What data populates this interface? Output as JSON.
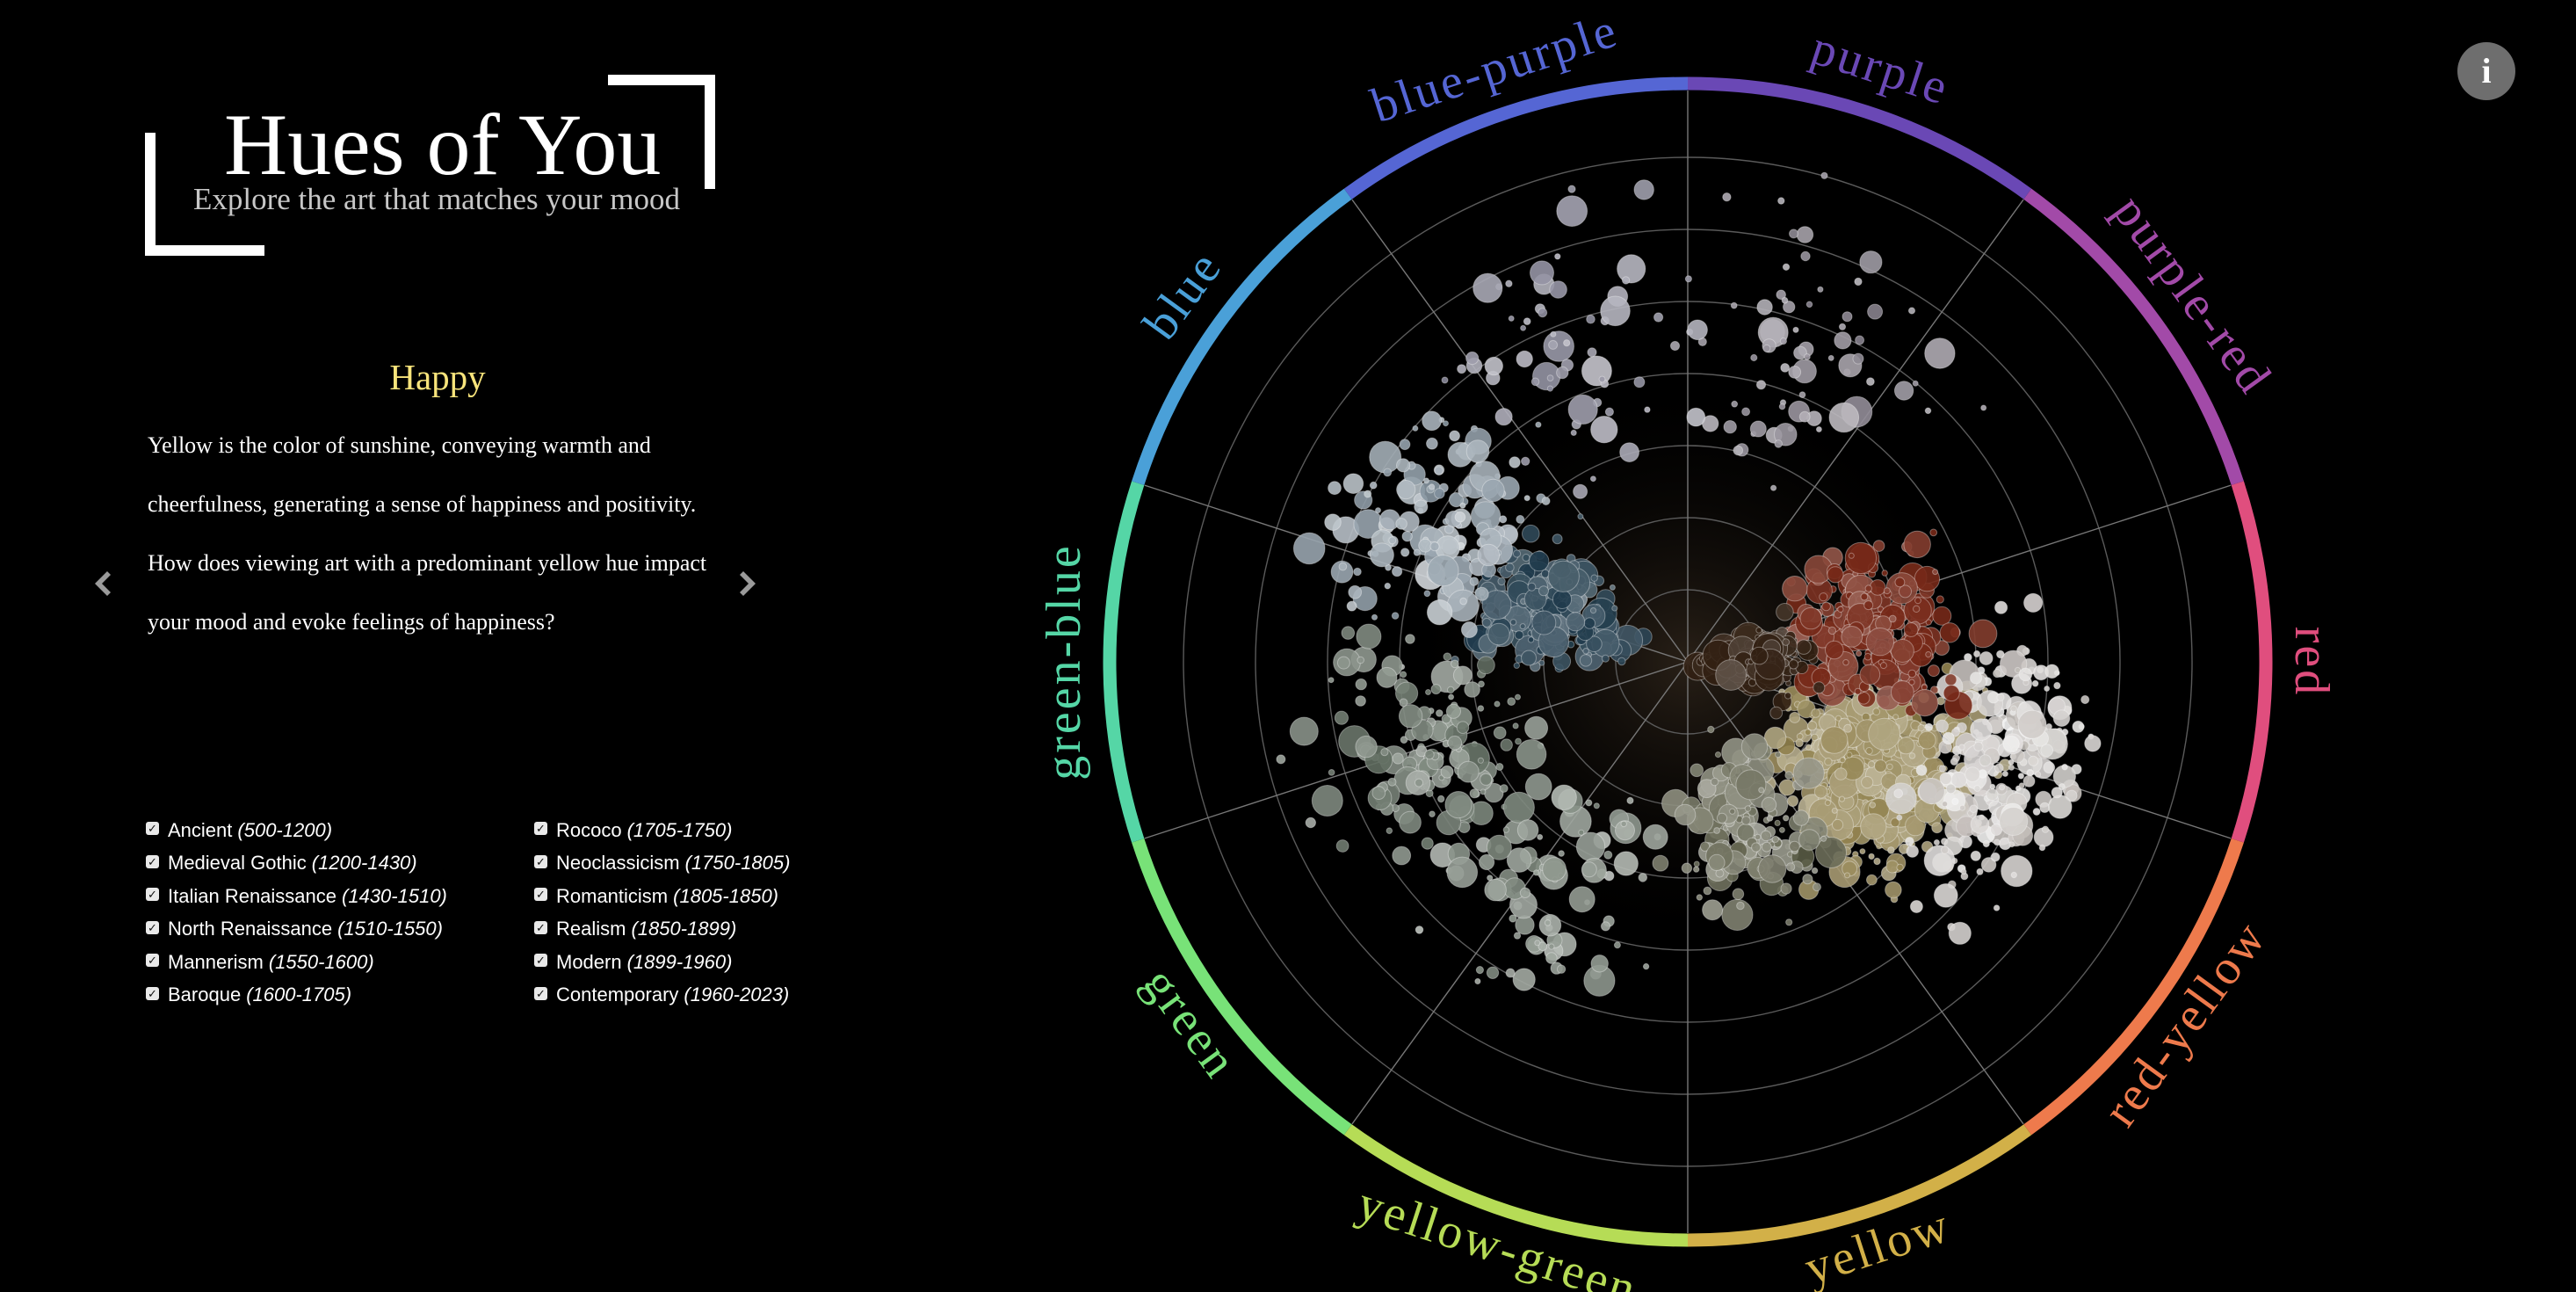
{
  "header": {
    "title": "Hues of You",
    "subtitle": "Explore the art that matches your mood"
  },
  "mood": {
    "title": "Happy",
    "lines": [
      "Yellow is the color of sunshine, conveying warmth and",
      "cheerfulness, generating a sense of happiness and positivity.",
      "How does viewing art with a predominant yellow hue impact",
      "your mood and evoke feelings of happiness?"
    ],
    "title_color": "#f8e47b"
  },
  "nav": {
    "prev_icon": "chevron-left-icon",
    "next_icon": "chevron-right-icon"
  },
  "info_button": {
    "label": "i",
    "icon": "info-icon"
  },
  "eras": [
    {
      "name": "Ancient",
      "years": "(500-1200)",
      "checked": true
    },
    {
      "name": "Medieval Gothic",
      "years": "(1200-1430)",
      "checked": true
    },
    {
      "name": "Italian Renaissance",
      "years": "(1430-1510)",
      "checked": true
    },
    {
      "name": "North Renaissance",
      "years": "(1510-1550)",
      "checked": true
    },
    {
      "name": "Mannerism",
      "years": "(1550-1600)",
      "checked": true
    },
    {
      "name": "Baroque",
      "years": "(1600-1705)",
      "checked": true
    },
    {
      "name": "Rococo",
      "years": "(1705-1750)",
      "checked": true
    },
    {
      "name": "Neoclassicism",
      "years": "(1750-1805)",
      "checked": true
    },
    {
      "name": "Romanticism",
      "years": "(1805-1850)",
      "checked": true
    },
    {
      "name": "Realism",
      "years": "(1850-1899)",
      "checked": true
    },
    {
      "name": "Modern",
      "years": "(1899-1960)",
      "checked": true
    },
    {
      "name": "Contemporary",
      "years": "(1960-2023)",
      "checked": true
    }
  ],
  "hue_wheel": {
    "segments": [
      {
        "label": "purple",
        "color": "#6a48b5"
      },
      {
        "label": "purple-red",
        "color": "#a24aa8"
      },
      {
        "label": "red",
        "color": "#e04e7e"
      },
      {
        "label": "red-yellow",
        "color": "#ee7a4c"
      },
      {
        "label": "yellow",
        "color": "#d2b048"
      },
      {
        "label": "yellow-green",
        "color": "#b6dc56"
      },
      {
        "label": "green",
        "color": "#78e278"
      },
      {
        "label": "green-blue",
        "color": "#55d6a6"
      },
      {
        "label": "blue",
        "color": "#4aa0d8"
      },
      {
        "label": "blue-purple",
        "color": "#5566d4"
      }
    ]
  },
  "colors": {
    "background": "#000000",
    "ring_grid": "#5a5a5a",
    "accent": "#f8e47b"
  }
}
